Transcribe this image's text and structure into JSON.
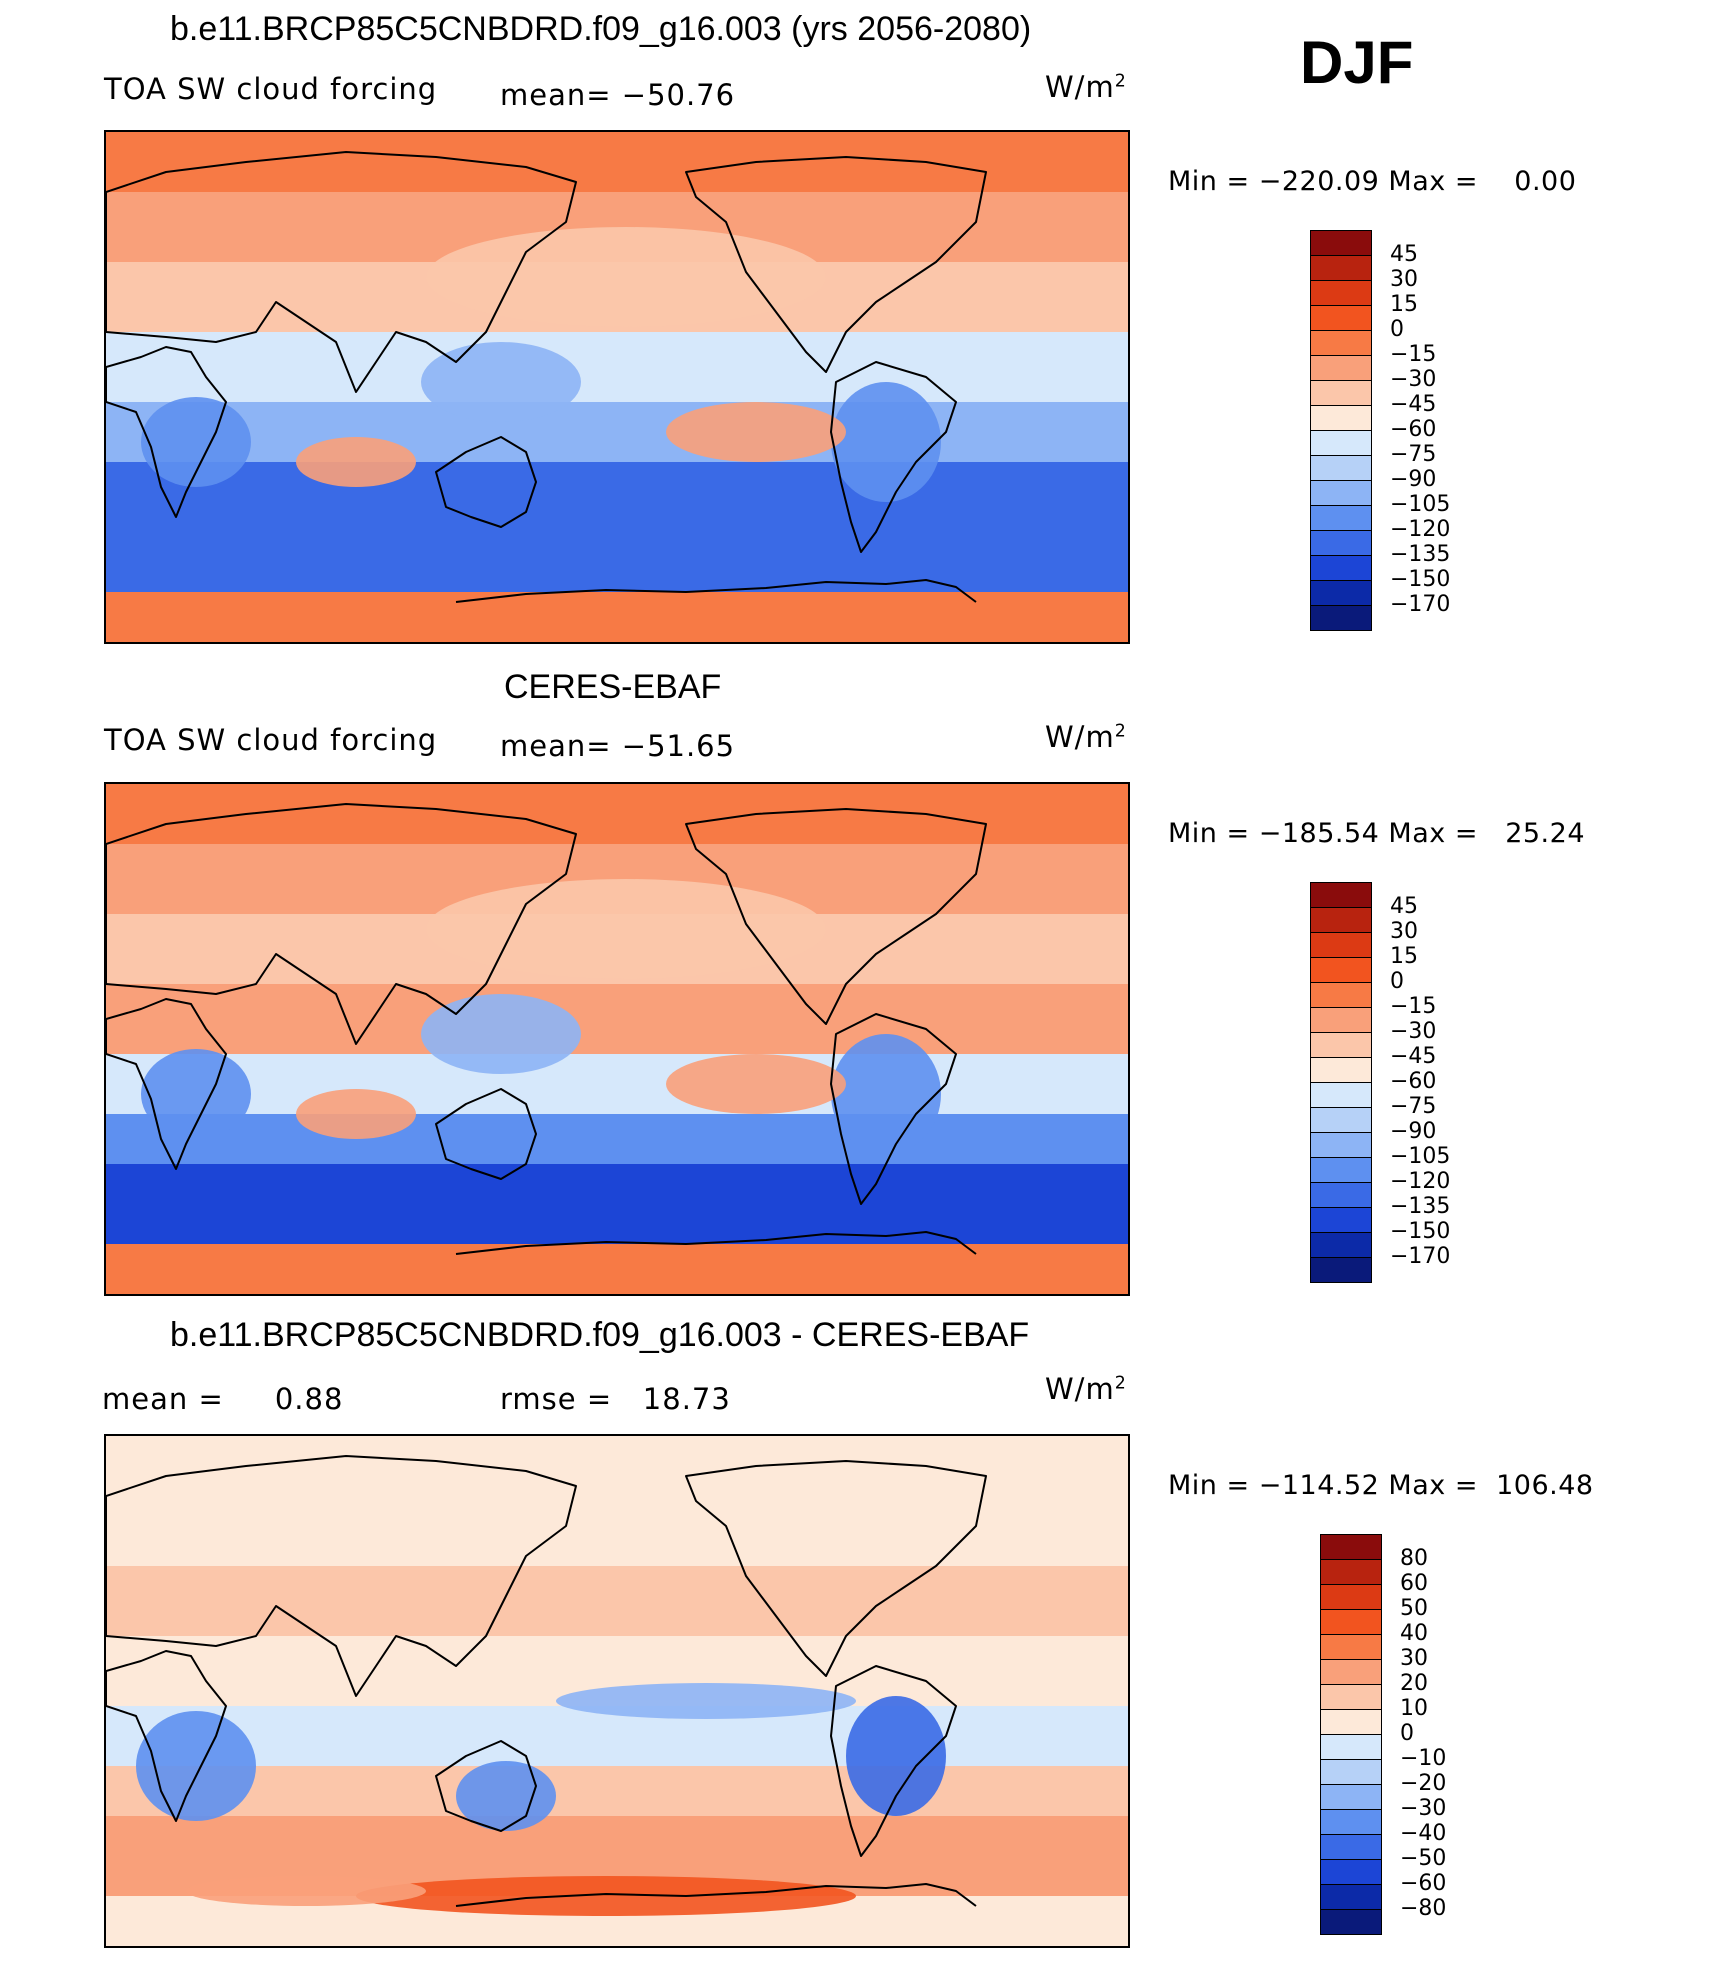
{
  "season": "DJF",
  "panels": [
    {
      "title": "b.e11.BRCP85C5CNBDRD.f09_g16.003 (yrs 2056-2080)",
      "variable": "TOA SW cloud forcing",
      "stat_left_label": "",
      "stat_left_value": "",
      "stat_mid_label": "mean=",
      "stat_mid_value": "−50.76",
      "units": "W/m",
      "units_exp": "2",
      "min_label": "Min  =",
      "min_value": "−220.09",
      "max_label": "Max  =",
      "max_value": "0.00",
      "colorbar": {
        "levels": [
          "45",
          "30",
          "15",
          "0",
          "−15",
          "−30",
          "−45",
          "−60",
          "−75",
          "−90",
          "−105",
          "−120",
          "−135",
          "−150",
          "−170"
        ],
        "colors": [
          "#8a0c0c",
          "#b8230f",
          "#dc3a14",
          "#f2541f",
          "#f77a45",
          "#f9a07a",
          "#fbc6aa",
          "#fde9d9",
          "#d6e8fb",
          "#b6d1f7",
          "#8db4f5",
          "#5e90f0",
          "#3a6ae6",
          "#1c45d6",
          "#0c2aa8",
          "#0a1a7a"
        ]
      },
      "map": {
        "background": "#f77a45",
        "bands": [
          "#f77a45",
          "#f9a07a",
          "#fbc6aa",
          "#d6e8fb",
          "#8db4f5",
          "#3a6ae6",
          "#3a6ae6",
          "#f77a45"
        ]
      }
    },
    {
      "title": "CERES-EBAF",
      "variable": "TOA SW cloud forcing",
      "stat_left_label": "",
      "stat_left_value": "",
      "stat_mid_label": "mean=",
      "stat_mid_value": "−51.65",
      "units": "W/m",
      "units_exp": "2",
      "min_label": "Min  =",
      "min_value": "−185.54",
      "max_label": "Max  =",
      "max_value": "25.24",
      "colorbar": {
        "levels": [
          "45",
          "30",
          "15",
          "0",
          "−15",
          "−30",
          "−45",
          "−60",
          "−75",
          "−90",
          "−105",
          "−120",
          "−135",
          "−150",
          "−170"
        ],
        "colors": [
          "#8a0c0c",
          "#b8230f",
          "#dc3a14",
          "#f2541f",
          "#f77a45",
          "#f9a07a",
          "#fbc6aa",
          "#fde9d9",
          "#d6e8fb",
          "#b6d1f7",
          "#8db4f5",
          "#5e90f0",
          "#3a6ae6",
          "#1c45d6",
          "#0c2aa8",
          "#0a1a7a"
        ]
      },
      "map": {
        "background": "#f77a45",
        "bands": [
          "#f77a45",
          "#f9a07a",
          "#fbc6aa",
          "#f9a07a",
          "#d6e8fb",
          "#5e90f0",
          "#1c45d6",
          "#f77a45"
        ]
      }
    },
    {
      "title": "b.e11.BRCP85C5CNBDRD.f09_g16.003 - CERES-EBAF",
      "variable": "",
      "stat_left_label": "mean =",
      "stat_left_value": "0.88",
      "stat_mid_label": "rmse =",
      "stat_mid_value": "18.73",
      "units": "W/m",
      "units_exp": "2",
      "min_label": "Min  =",
      "min_value": "−114.52",
      "max_label": "Max  =",
      "max_value": "106.48",
      "colorbar": {
        "levels": [
          "80",
          "60",
          "50",
          "40",
          "30",
          "20",
          "10",
          "0",
          "−10",
          "−20",
          "−30",
          "−40",
          "−50",
          "−60",
          "−80"
        ],
        "colors": [
          "#8a0c0c",
          "#b8230f",
          "#dc3a14",
          "#f2541f",
          "#f77a45",
          "#f9a07a",
          "#fbc6aa",
          "#fde9d9",
          "#d6e8fb",
          "#b6d1f7",
          "#8db4f5",
          "#5e90f0",
          "#3a6ae6",
          "#1c45d6",
          "#0c2aa8",
          "#0a1a7a"
        ]
      },
      "map": {
        "background": "#fde9d9",
        "bands": [
          "#fde9d9",
          "#fde9d9",
          "#fbc6aa",
          "#fde9d9",
          "#d6e8fb",
          "#fbc6aa",
          "#f9a07a",
          "#fde9d9"
        ]
      }
    }
  ]
}
